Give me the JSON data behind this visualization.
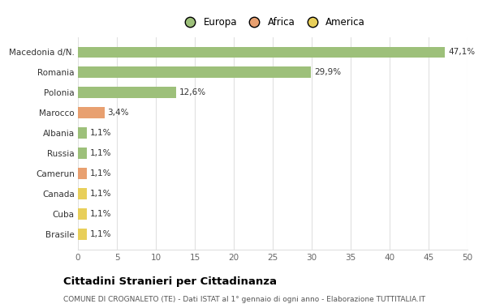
{
  "categories": [
    "Brasile",
    "Cuba",
    "Canada",
    "Camerun",
    "Russia",
    "Albania",
    "Marocco",
    "Polonia",
    "Romania",
    "Macedonia d/N."
  ],
  "values": [
    1.1,
    1.1,
    1.1,
    1.1,
    1.1,
    1.1,
    3.4,
    12.6,
    29.9,
    47.1
  ],
  "labels": [
    "1,1%",
    "1,1%",
    "1,1%",
    "1,1%",
    "1,1%",
    "1,1%",
    "3,4%",
    "12,6%",
    "29,9%",
    "47,1%"
  ],
  "colors": [
    "#e8cf5a",
    "#e8cf5a",
    "#e8cf5a",
    "#e8a070",
    "#9dc07a",
    "#9dc07a",
    "#e8a070",
    "#9dc07a",
    "#9dc07a",
    "#9dc07a"
  ],
  "legend": [
    {
      "label": "Europa",
      "color": "#9dc07a"
    },
    {
      "label": "Africa",
      "color": "#e8a070"
    },
    {
      "label": "America",
      "color": "#e8cf5a"
    }
  ],
  "xlim": [
    0,
    50
  ],
  "xticks": [
    0,
    5,
    10,
    15,
    20,
    25,
    30,
    35,
    40,
    45,
    50
  ],
  "title": "Cittadini Stranieri per Cittadinanza",
  "subtitle": "COMUNE DI CROGNALETO (TE) - Dati ISTAT al 1° gennaio di ogni anno - Elaborazione TUTTITALIA.IT",
  "background_color": "#ffffff",
  "grid_color": "#e0e0e0"
}
